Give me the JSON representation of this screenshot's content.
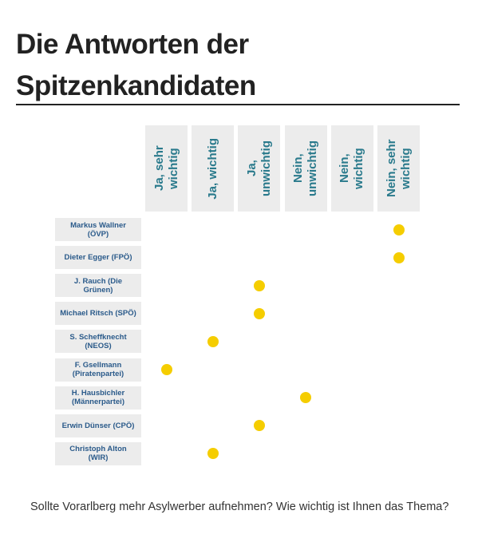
{
  "chart_data": {
    "type": "dot-matrix",
    "title": "Die Antworten der Spitzenkandidaten",
    "columns": [
      "Ja, sehr wichtig",
      "Ja, wichtig",
      "Ja, unwichtig",
      "Nein, unwichtig",
      "Nein, wichtig",
      "Nein, sehr wichtig"
    ],
    "rows": [
      "Markus Wallner (ÖVP)",
      "Dieter Egger (FPÖ)",
      "J. Rauch (Die Grünen)",
      "Michael Ritsch (SPÖ)",
      "S. Scheffknecht (NEOS)",
      "F. Gsellmann (Piratenpartei)",
      "H. Hausbichler (Männerpartei)",
      "Erwin Dünser (CPÖ)",
      "Christoph Alton (WIR)"
    ],
    "answers": [
      5,
      5,
      2,
      2,
      1,
      0,
      3,
      2,
      1
    ],
    "color": "#f5cd00",
    "question": "Sollte Vorarlberg mehr Asylwerber aufnehmen? Wie wichtig ist Ihnen das Thema?"
  }
}
